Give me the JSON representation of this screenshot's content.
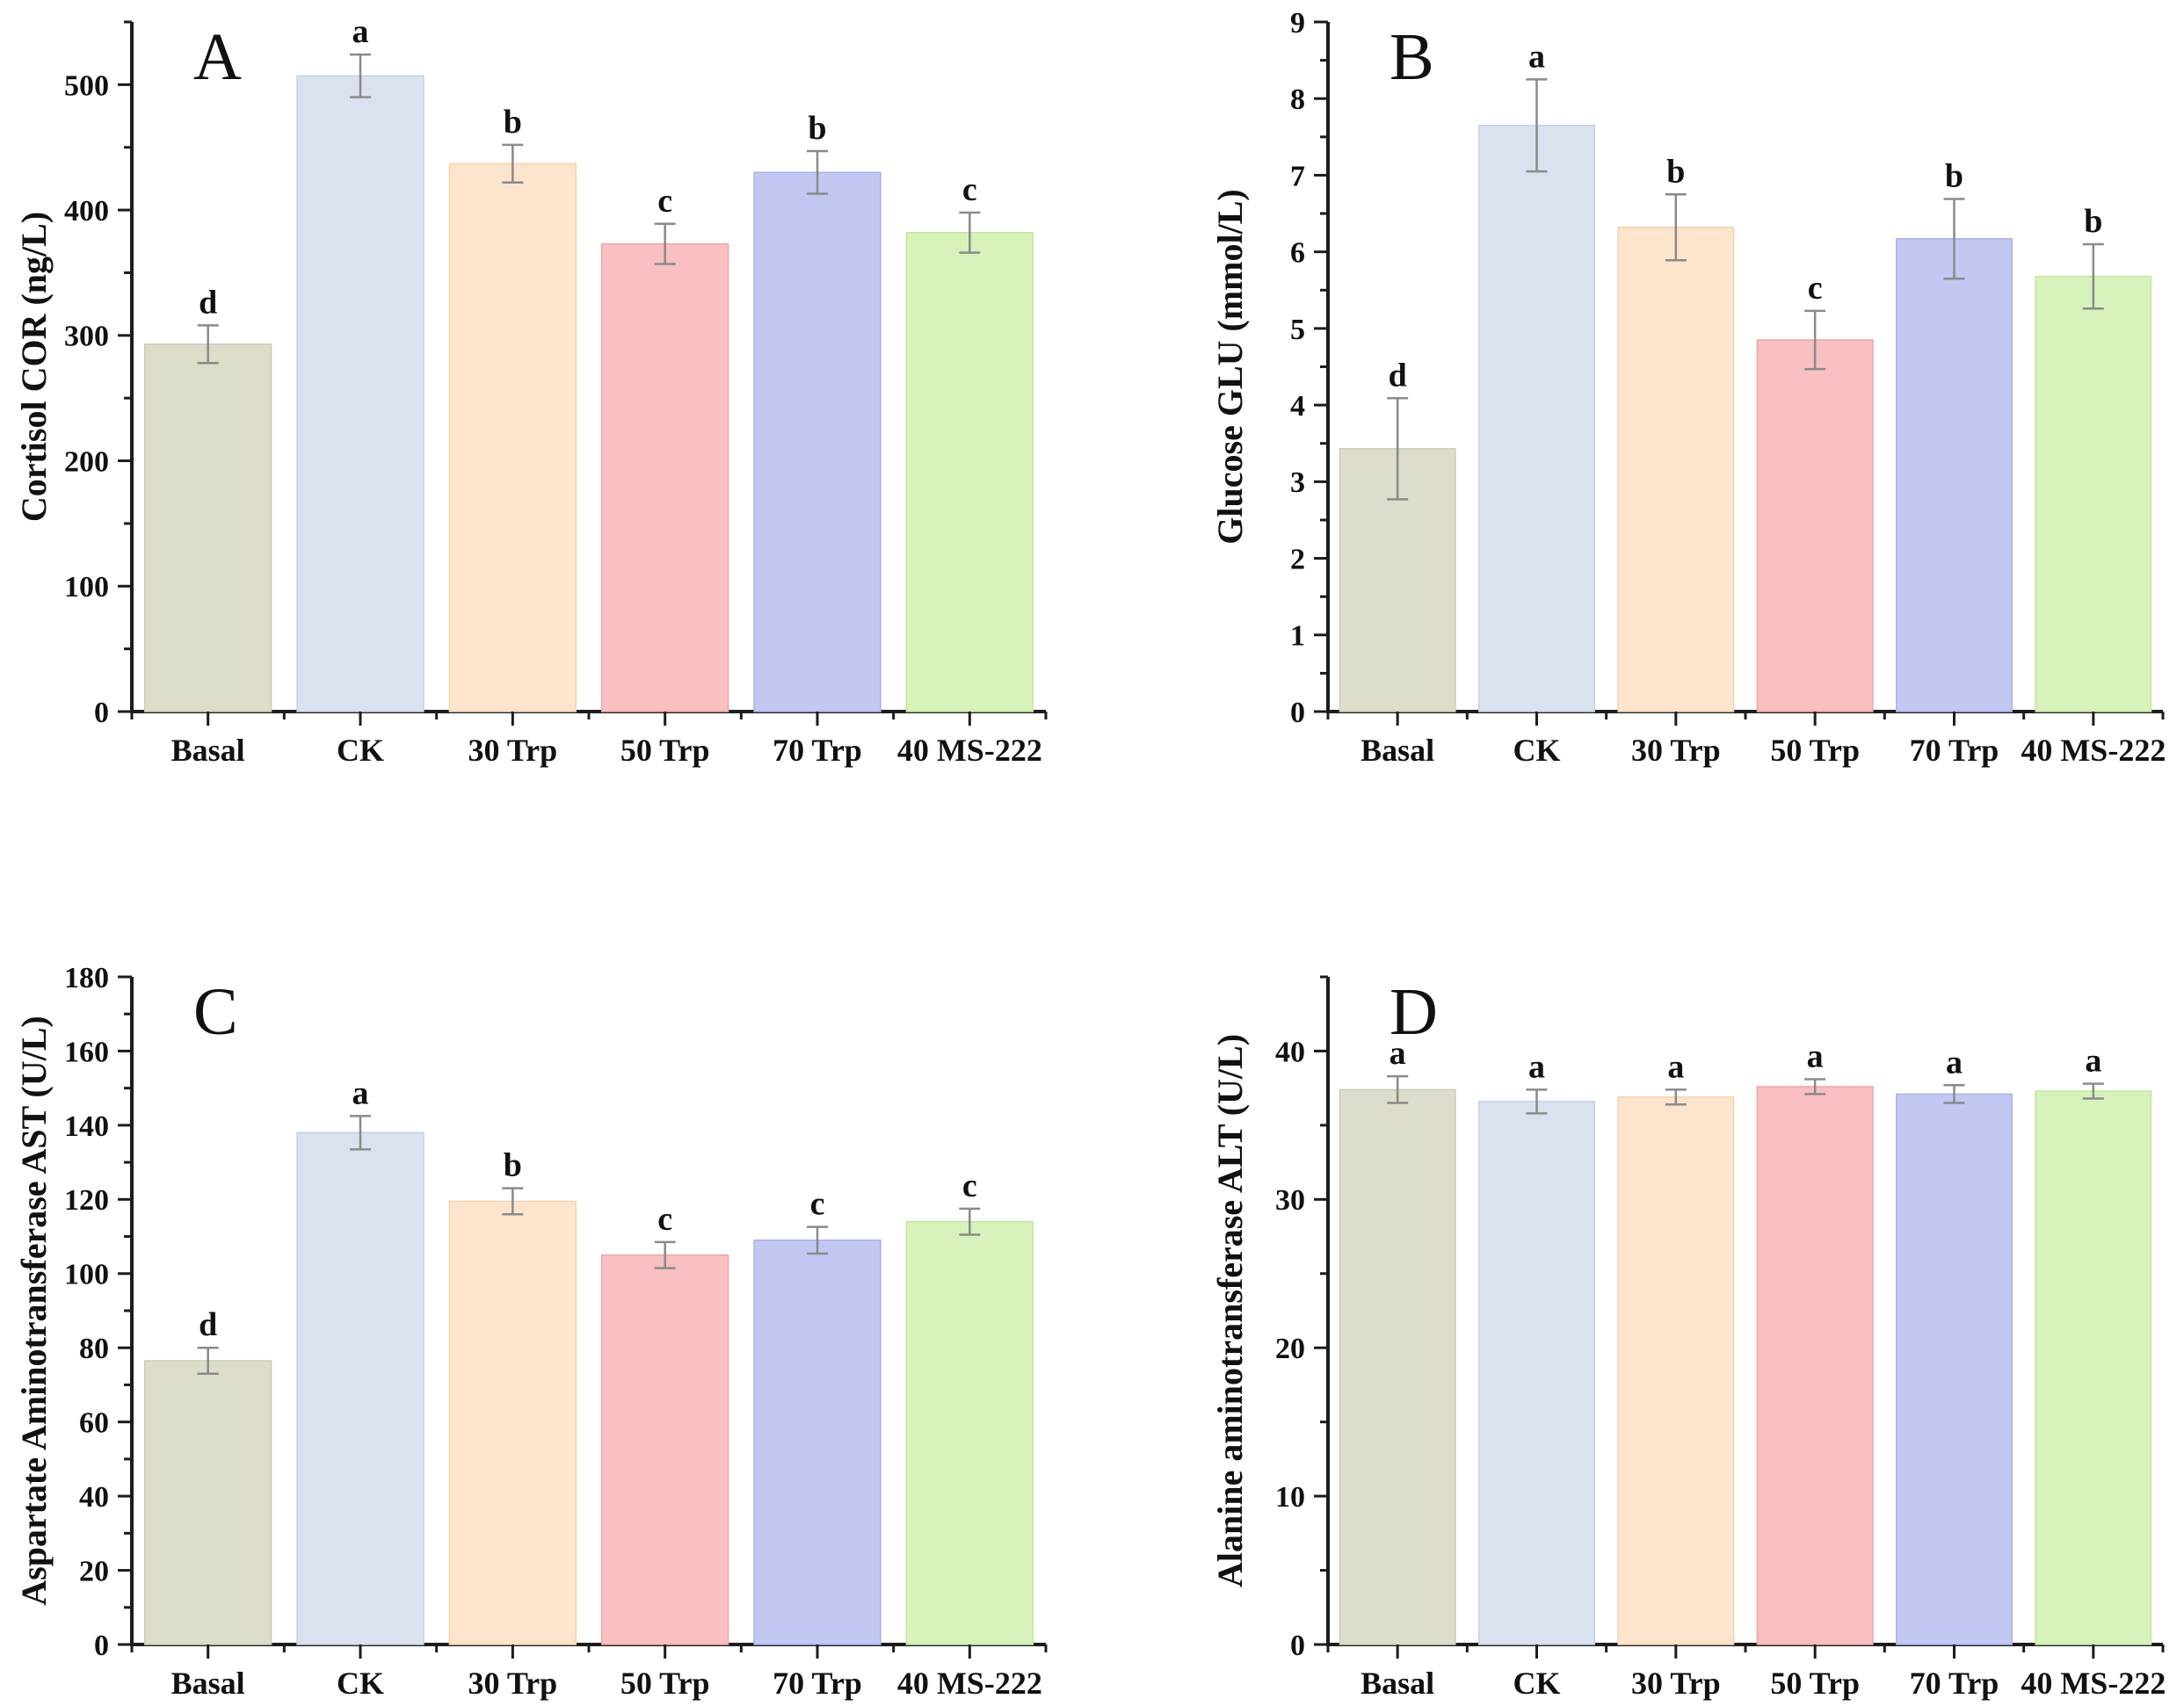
{
  "figure": {
    "background": "#ffffff",
    "axis_color": "#1c1c1c",
    "error_bar_color": "#8a8a8a",
    "text_color": "#111111",
    "categories": [
      "Basal",
      "CK",
      "30 Trp",
      "50 Trp",
      "70 Trp",
      "40 MS-222"
    ],
    "bar_colors": [
      "#dedcca",
      "#d9e2ee",
      "#fce4cd",
      "#f8c0c0",
      "#c2c8f2",
      "#d8f2bc"
    ],
    "bar_edge_colors": [
      "#cdcbb5",
      "#c4d1e3",
      "#f4d2ae",
      "#f0a4a4",
      "#a9b0e9",
      "#c1e79e"
    ]
  },
  "chart_data": [
    {
      "type": "bar",
      "panel_label": "A",
      "title": "",
      "xlabel": "",
      "ylabel": "Cortisol COR (ng/L)",
      "ylim": [
        0,
        550
      ],
      "ytick_step": 100,
      "minor_step": 50,
      "grid": false,
      "legend": "none",
      "categories": [
        "Basal",
        "CK",
        "30 Trp",
        "50 Trp",
        "70 Trp",
        "40 MS-222"
      ],
      "values": [
        293,
        507,
        437,
        373,
        430,
        382
      ],
      "errors": [
        15,
        17,
        15,
        16,
        17,
        16
      ],
      "sig_letters": [
        "d",
        "a",
        "b",
        "c",
        "b",
        "c"
      ]
    },
    {
      "type": "bar",
      "panel_label": "B",
      "title": "",
      "xlabel": "",
      "ylabel": "Glucose GLU (mmol/L)",
      "ylim": [
        0,
        9
      ],
      "ytick_step": 1,
      "minor_step": 0.5,
      "grid": false,
      "legend": "none",
      "categories": [
        "Basal",
        "CK",
        "30 Trp",
        "50 Trp",
        "70 Trp",
        "40 MS-222"
      ],
      "values": [
        3.43,
        7.65,
        6.32,
        4.85,
        6.17,
        5.68
      ],
      "errors": [
        0.66,
        0.6,
        0.43,
        0.38,
        0.52,
        0.42
      ],
      "sig_letters": [
        "d",
        "a",
        "b",
        "c",
        "b",
        "b"
      ]
    },
    {
      "type": "bar",
      "panel_label": "C",
      "title": "",
      "xlabel": "",
      "ylabel": "Aspartate Aminotransferase AST (U/L)",
      "ylim": [
        0,
        180
      ],
      "ytick_step": 20,
      "minor_step": 10,
      "grid": false,
      "legend": "none",
      "categories": [
        "Basal",
        "CK",
        "30 Trp",
        "50 Trp",
        "70 Trp",
        "40 MS-222"
      ],
      "values": [
        76.5,
        138,
        119.5,
        105,
        109,
        114
      ],
      "errors": [
        3.5,
        4.5,
        3.5,
        3.5,
        3.6,
        3.5
      ],
      "sig_letters": [
        "d",
        "a",
        "b",
        "c",
        "c",
        "c"
      ]
    },
    {
      "type": "bar",
      "panel_label": "D",
      "title": "",
      "xlabel": "",
      "ylabel": "Alanine aminotransferase ALT (U/L)",
      "ylim": [
        0,
        45
      ],
      "ytick_step": 10,
      "minor_step": 5,
      "grid": false,
      "legend": "none",
      "categories": [
        "Basal",
        "CK",
        "30 Trp",
        "50 Trp",
        "70 Trp",
        "40 MS-222"
      ],
      "values": [
        37.4,
        36.6,
        36.9,
        37.6,
        37.1,
        37.3
      ],
      "errors": [
        0.9,
        0.8,
        0.5,
        0.5,
        0.6,
        0.5
      ],
      "sig_letters": [
        "a",
        "a",
        "a",
        "a",
        "a",
        "a"
      ]
    }
  ]
}
